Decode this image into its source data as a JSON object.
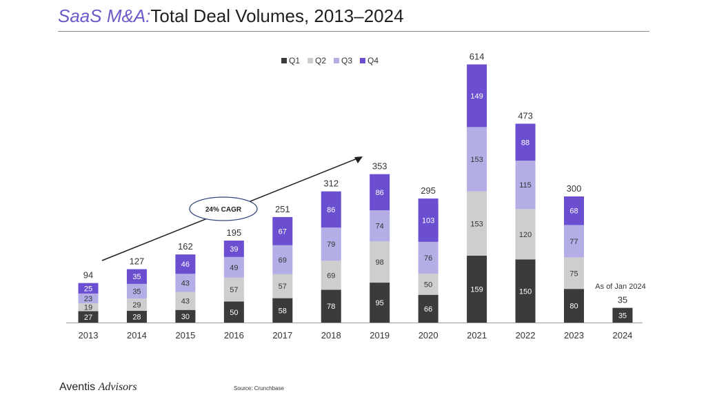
{
  "title": {
    "prefix": "SaaS M&A:",
    "main": "Total Deal Volumes, 2013–2024"
  },
  "footer": {
    "brand_main": "Aventis ",
    "brand_italic": "Advisors",
    "source": "Source: Crunchbase"
  },
  "chart_data": {
    "type": "bar",
    "stacked": true,
    "categories": [
      "2013",
      "2014",
      "2015",
      "2016",
      "2017",
      "2018",
      "2019",
      "2020",
      "2021",
      "2022",
      "2023",
      "2024"
    ],
    "series": [
      {
        "name": "Q1",
        "color": "#3b3b3b",
        "values": [
          27,
          28,
          30,
          50,
          58,
          78,
          95,
          66,
          159,
          150,
          80,
          35
        ]
      },
      {
        "name": "Q2",
        "color": "#d0cdcf",
        "values": [
          19,
          29,
          43,
          57,
          57,
          69,
          98,
          50,
          153,
          120,
          75,
          null
        ]
      },
      {
        "name": "Q3",
        "color": "#b3aee6",
        "values": [
          23,
          35,
          43,
          49,
          69,
          79,
          74,
          76,
          153,
          115,
          77,
          null
        ]
      },
      {
        "name": "Q4",
        "color": "#6b4fd0",
        "values": [
          25,
          35,
          46,
          39,
          67,
          86,
          86,
          103,
          149,
          88,
          68,
          null
        ]
      }
    ],
    "totals": [
      94,
      127,
      162,
      195,
      251,
      312,
      353,
      295,
      614,
      473,
      300,
      35
    ],
    "annotations": {
      "cagr": "24% CAGR",
      "note_2024": "As of Jan 2024"
    },
    "legend": "top-center",
    "grid": false
  }
}
